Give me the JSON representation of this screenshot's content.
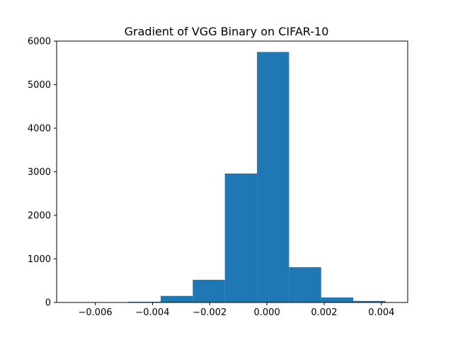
{
  "chart_data": {
    "type": "bar",
    "title": "Gradient of VGG Binary on CIFAR-10",
    "xlabel": "",
    "ylabel": "",
    "xlim": [
      -0.00735,
      0.00492
    ],
    "ylim": [
      0,
      6000
    ],
    "grid": false,
    "legend": "none",
    "bar_color": "#1f77b4",
    "bin_edges": [
      -0.00708,
      -0.005958,
      -0.004836,
      -0.003714,
      -0.002592,
      -0.00147,
      -0.000348,
      0.000774,
      0.001896,
      0.003018,
      0.00414
    ],
    "values": [
      1,
      3,
      15,
      150,
      520,
      2960,
      5750,
      810,
      115,
      35
    ],
    "x_ticks": [
      -0.006,
      -0.004,
      -0.002,
      0.0,
      0.002,
      0.004
    ],
    "x_tick_labels": [
      "−0.006",
      "−0.004",
      "−0.002",
      "0.000",
      "0.002",
      "0.004"
    ],
    "y_ticks": [
      0,
      1000,
      2000,
      3000,
      4000,
      5000,
      6000
    ],
    "y_tick_labels": [
      "0",
      "1000",
      "2000",
      "3000",
      "4000",
      "5000",
      "6000"
    ]
  }
}
